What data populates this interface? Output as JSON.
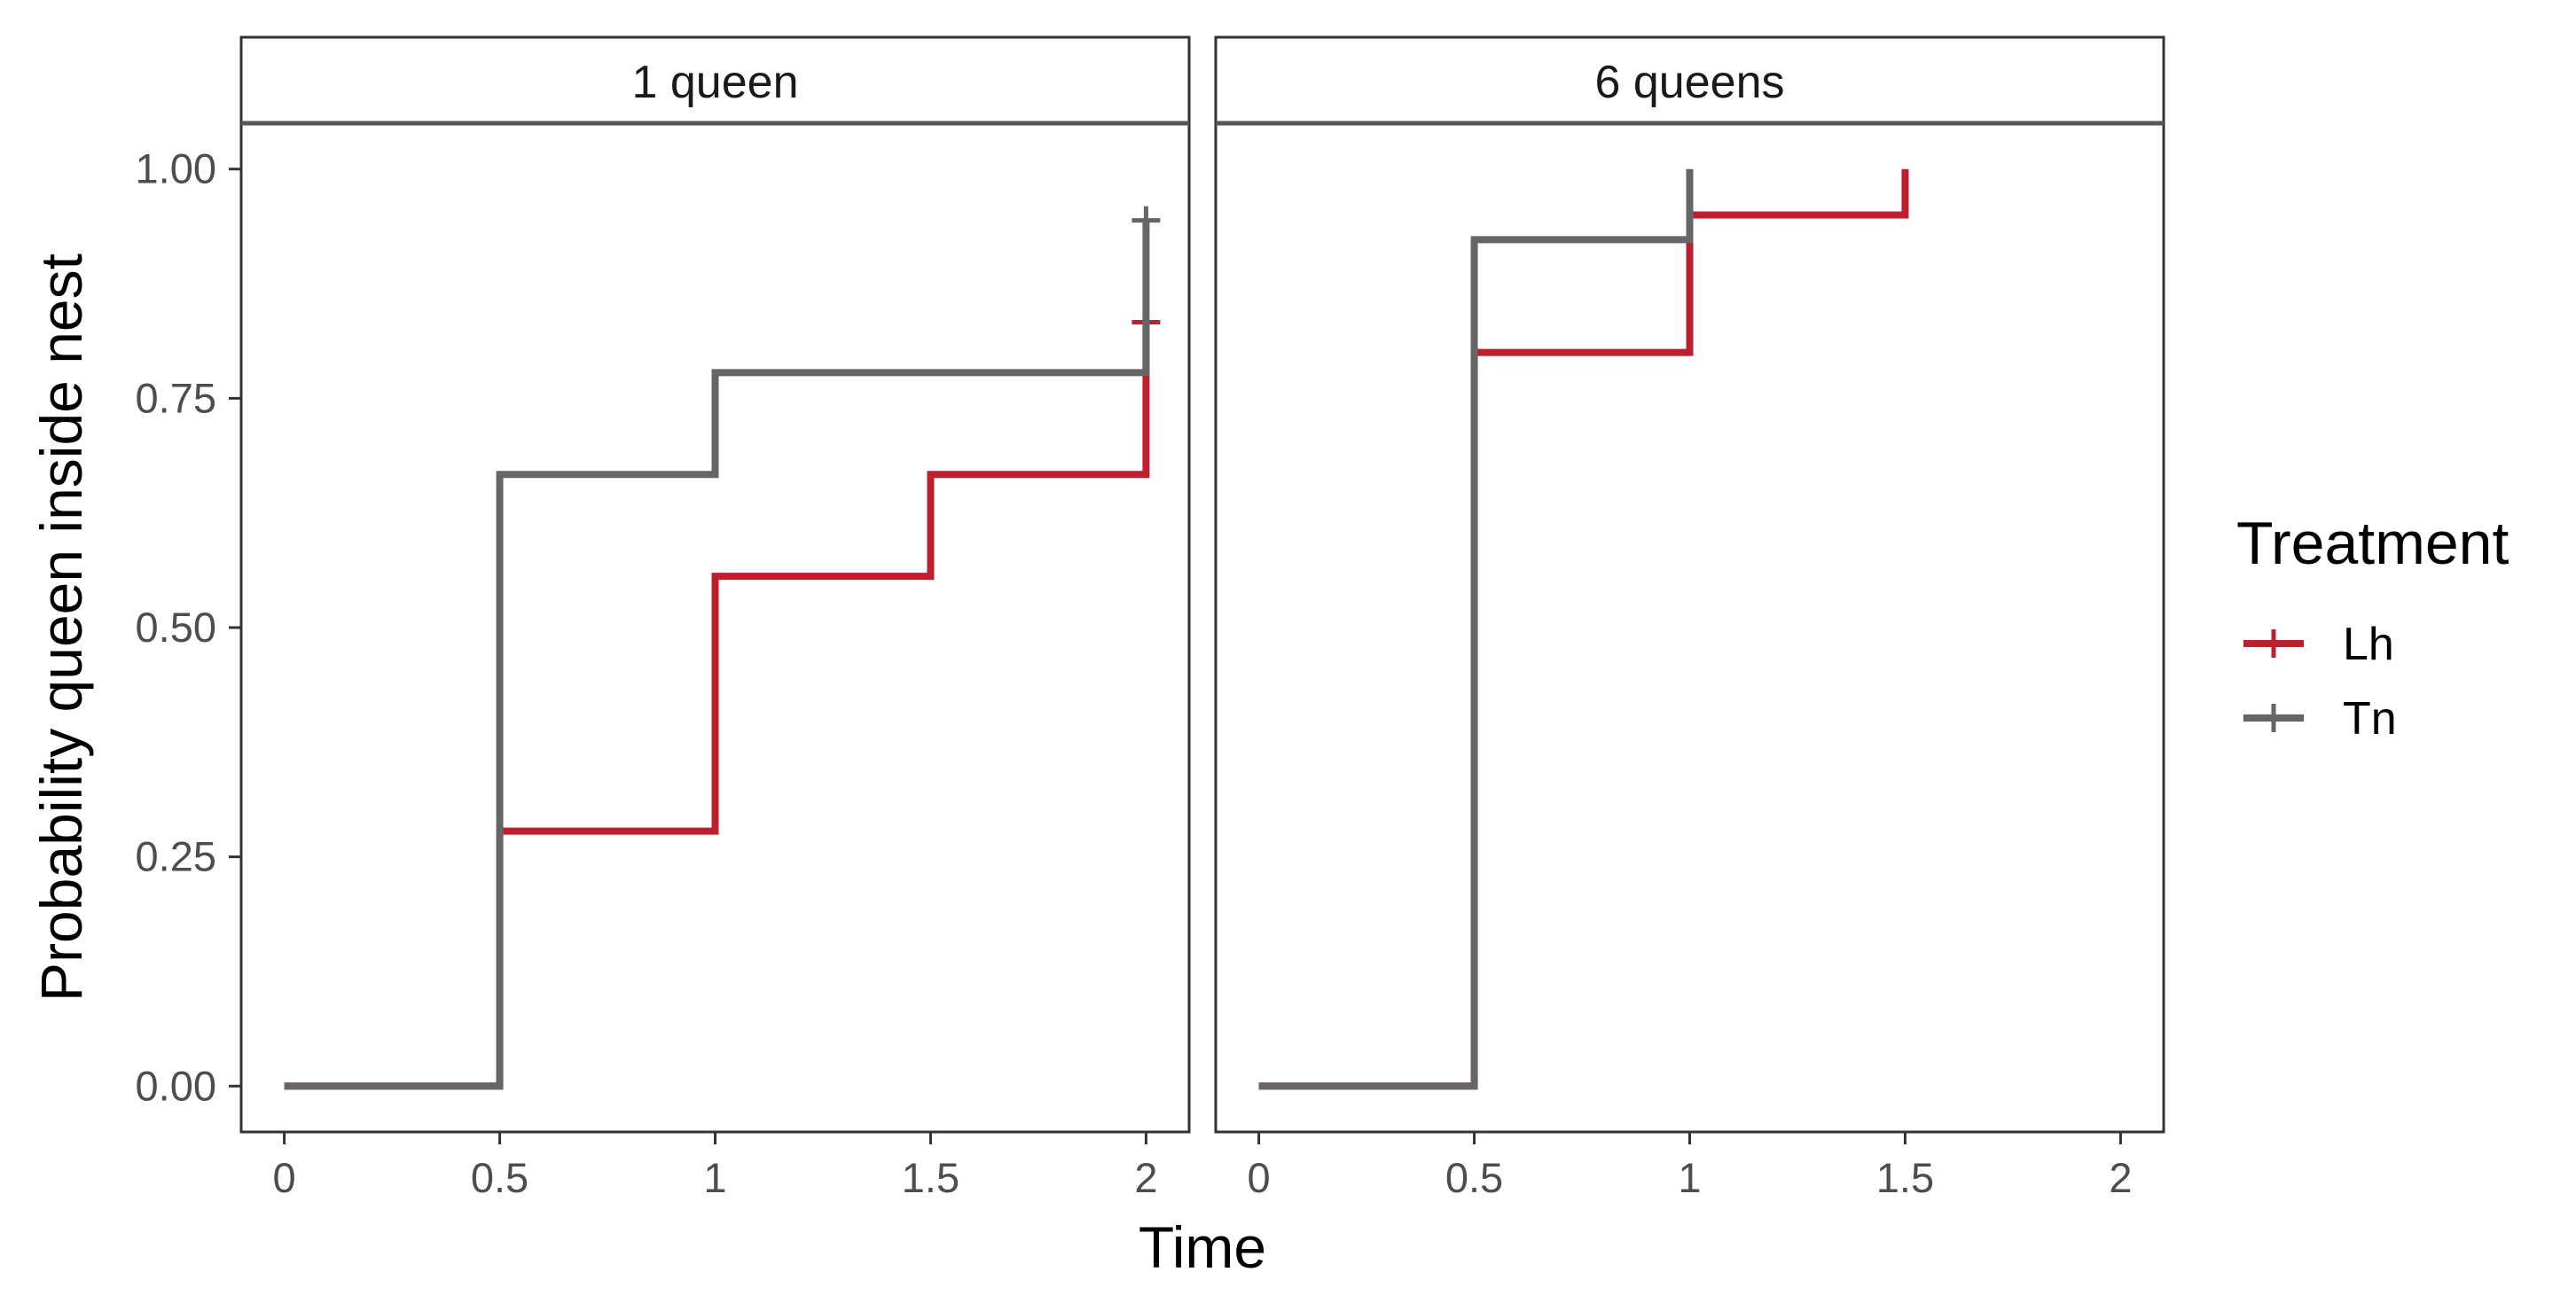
{
  "chart_data": {
    "type": "line",
    "step": true,
    "facet_variable": "queens",
    "facets": [
      {
        "title": "1 queen",
        "series": [
          {
            "name": "Lh",
            "color": "#be1e2d",
            "x": [
              0,
              0.5,
              1,
              1.5,
              2
            ],
            "y": [
              0,
              0.278,
              0.556,
              0.667,
              0.833
            ],
            "censor_marks": [
              {
                "x": 2,
                "y": 0.833
              }
            ]
          },
          {
            "name": "Tn",
            "color": "#666666",
            "x": [
              0,
              0.5,
              1,
              2
            ],
            "y": [
              0,
              0.667,
              0.778,
              0.944
            ],
            "censor_marks": [
              {
                "x": 2,
                "y": 0.944
              }
            ]
          }
        ]
      },
      {
        "title": "6 queens",
        "series": [
          {
            "name": "Lh",
            "color": "#be1e2d",
            "x": [
              0,
              0.5,
              1,
              1.5
            ],
            "y": [
              0,
              0.8,
              0.95,
              1.0
            ],
            "censor_marks": []
          },
          {
            "name": "Tn",
            "color": "#666666",
            "x": [
              0,
              0.5,
              1
            ],
            "y": [
              0,
              0.923,
              1.0
            ],
            "censor_marks": []
          }
        ]
      }
    ],
    "xlabel": "Time",
    "ylabel": "Probability queen inside nest",
    "xlim": [
      -0.1,
      2.1
    ],
    "ylim": [
      -0.05,
      1.05
    ],
    "xticks": [
      0,
      0.5,
      1,
      1.5,
      2
    ],
    "xtick_labels": [
      "0",
      "0.5",
      "1",
      "1.5",
      "2"
    ],
    "yticks": [
      0,
      0.25,
      0.5,
      0.75,
      1.0
    ],
    "ytick_labels": [
      "0.00",
      "0.25",
      "0.50",
      "0.75",
      "1.00"
    ],
    "grid": false,
    "legend": {
      "title": "Treatment",
      "position": "right",
      "entries": [
        {
          "label": "Lh",
          "color": "#be1e2d"
        },
        {
          "label": "Tn",
          "color": "#666666"
        }
      ]
    }
  }
}
